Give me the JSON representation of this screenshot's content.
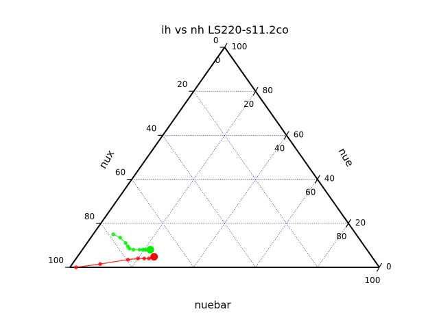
{
  "chart_data": {
    "type": "ternary",
    "title": "ih vs nh LS220-s11.2co",
    "axes": {
      "bottom_label": "nuebar",
      "left_label": "nux",
      "right_label": "nue"
    },
    "ticks": [
      "0",
      "20",
      "40",
      "60",
      "80",
      "100"
    ],
    "grid": true,
    "series": [
      {
        "color": "#ff0000",
        "points": [
          {
            "nuebar": 2.0,
            "nux": 98.0,
            "nue": 0.0
          },
          {
            "nuebar": 9.0,
            "nux": 89.5,
            "nue": 1.5
          },
          {
            "nuebar": 17.0,
            "nux": 79.5,
            "nue": 3.5
          },
          {
            "nuebar": 20.0,
            "nux": 76.0,
            "nue": 4.0
          },
          {
            "nuebar": 22.0,
            "nux": 74.0,
            "nue": 4.0
          },
          {
            "nuebar": 23.5,
            "nux": 72.5,
            "nue": 4.0
          },
          {
            "nuebar": 24.3,
            "nux": 71.2,
            "nue": 4.5
          },
          {
            "nuebar": 24.6,
            "nux": 70.7,
            "nue": 4.7
          },
          {
            "nuebar": 24.8,
            "nux": 70.4,
            "nue": 4.8
          }
        ]
      },
      {
        "color": "#00ee00",
        "points": [
          {
            "nuebar": 6.5,
            "nux": 78.5,
            "nue": 15.0
          },
          {
            "nuebar": 9.5,
            "nux": 77.0,
            "nue": 13.5
          },
          {
            "nuebar": 12.5,
            "nux": 76.5,
            "nue": 11.0
          },
          {
            "nuebar": 14.0,
            "nux": 76.5,
            "nue": 9.5
          },
          {
            "nuebar": 15.0,
            "nux": 76.5,
            "nue": 8.5
          },
          {
            "nuebar": 16.5,
            "nux": 75.5,
            "nue": 8.0
          },
          {
            "nuebar": 18.5,
            "nux": 73.5,
            "nue": 8.0
          },
          {
            "nuebar": 19.5,
            "nux": 72.5,
            "nue": 8.0
          },
          {
            "nuebar": 20.5,
            "nux": 71.5,
            "nue": 8.0
          },
          {
            "nuebar": 21.0,
            "nux": 71.0,
            "nue": 8.0
          },
          {
            "nuebar": 20.0,
            "nux": 72.0,
            "nue": 8.0
          },
          {
            "nuebar": 21.5,
            "nux": 70.5,
            "nue": 8.0
          },
          {
            "nuebar": 22.0,
            "nux": 70.0,
            "nue": 8.0
          }
        ]
      }
    ]
  }
}
